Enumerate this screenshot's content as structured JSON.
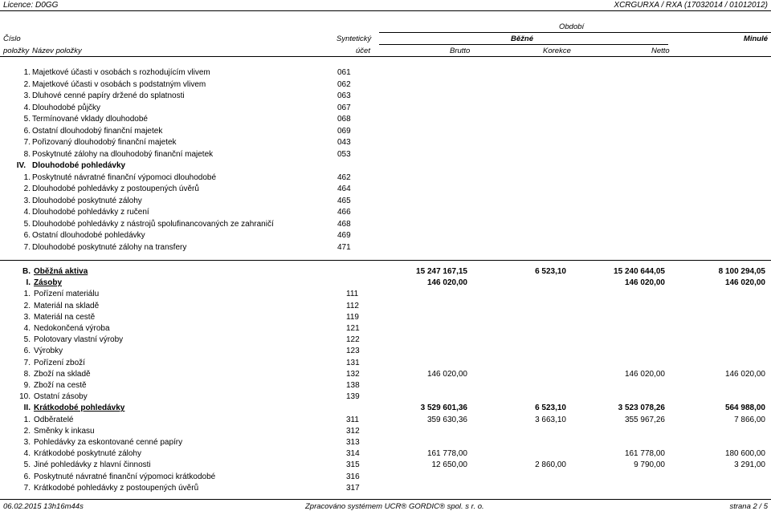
{
  "topbar": {
    "left": "Licence: D0GG",
    "right": "XCRGURXA / RXA  (17032014 / 01012012)"
  },
  "header": {
    "obdobi": "Období",
    "cislo": "Číslo",
    "syntheticky": "Syntetický",
    "bezne": "Běžné",
    "minule": "Minulé",
    "polozky": "položky",
    "nazev": "Název položky",
    "ucet": "účet",
    "brutto": "Brutto",
    "korekce": "Korekce",
    "netto": "Netto"
  },
  "rows1": [
    {
      "n": "1.",
      "t": "Majetkové účasti v osobách s rozhodujícím vlivem",
      "a": "061"
    },
    {
      "n": "2.",
      "t": "Majetkové účasti v osobách s podstatným vlivem",
      "a": "062"
    },
    {
      "n": "3.",
      "t": "Dluhové cenné papíry držené do splatnosti",
      "a": "063"
    },
    {
      "n": "4.",
      "t": "Dlouhodobé půjčky",
      "a": "067"
    },
    {
      "n": "5.",
      "t": "Termínované vklady dlouhodobé",
      "a": "068"
    },
    {
      "n": "6.",
      "t": "Ostatní dlouhodobý finanční majetek",
      "a": "069"
    },
    {
      "n": "7.",
      "t": "Pořizovaný dlouhodobý finanční majetek",
      "a": "043"
    },
    {
      "n": "8.",
      "t": "Poskytnuté zálohy na dlouhodobý finanční majetek",
      "a": "053"
    },
    {
      "n": "IV.",
      "t": "Dlouhodobé pohledávky",
      "a": "",
      "bold": true
    },
    {
      "n": "1.",
      "t": "Poskytnuté návratné finanční výpomoci dlouhodobé",
      "a": "462"
    },
    {
      "n": "2.",
      "t": "Dlouhodobé pohledávky z postoupených úvěrů",
      "a": "464"
    },
    {
      "n": "3.",
      "t": "Dlouhodobé poskytnuté zálohy",
      "a": "465"
    },
    {
      "n": "4.",
      "t": "Dlouhodobé pohledávky z ručení",
      "a": "466"
    },
    {
      "n": "5.",
      "t": "Dlouhodobé pohledávky z nástrojů spolufinancovaných ze zahraničí",
      "a": "468"
    },
    {
      "n": "6.",
      "t": "Ostatní dlouhodobé pohledávky",
      "a": "469"
    },
    {
      "n": "7.",
      "t": "Dlouhodobé poskytnuté zálohy na transfery",
      "a": "471"
    }
  ],
  "rows2": [
    {
      "n": "B.",
      "t": "Oběžná aktiva",
      "a": "",
      "brutto": "15 247 167,15",
      "korekce": "6 523,10",
      "netto": "15 240 644,05",
      "minule": "8 100 294,05",
      "bold": true
    },
    {
      "n": "I.",
      "t": "Zásoby",
      "a": "",
      "brutto": "146 020,00",
      "korekce": "",
      "netto": "146 020,00",
      "minule": "146 020,00",
      "bold": true
    },
    {
      "n": "1.",
      "t": "Pořízení materiálu",
      "a": "111",
      "brutto": "",
      "korekce": "",
      "netto": "",
      "minule": ""
    },
    {
      "n": "2.",
      "t": "Materiál na skladě",
      "a": "112",
      "brutto": "",
      "korekce": "",
      "netto": "",
      "minule": ""
    },
    {
      "n": "3.",
      "t": "Materiál na cestě",
      "a": "119",
      "brutto": "",
      "korekce": "",
      "netto": "",
      "minule": ""
    },
    {
      "n": "4.",
      "t": "Nedokončená výroba",
      "a": "121",
      "brutto": "",
      "korekce": "",
      "netto": "",
      "minule": ""
    },
    {
      "n": "5.",
      "t": "Polotovary vlastní výroby",
      "a": "122",
      "brutto": "",
      "korekce": "",
      "netto": "",
      "minule": ""
    },
    {
      "n": "6.",
      "t": "Výrobky",
      "a": "123",
      "brutto": "",
      "korekce": "",
      "netto": "",
      "minule": ""
    },
    {
      "n": "7.",
      "t": "Pořízení zboží",
      "a": "131",
      "brutto": "",
      "korekce": "",
      "netto": "",
      "minule": ""
    },
    {
      "n": "8.",
      "t": "Zboží na skladě",
      "a": "132",
      "brutto": "146 020,00",
      "korekce": "",
      "netto": "146 020,00",
      "minule": "146 020,00"
    },
    {
      "n": "9.",
      "t": "Zboží na cestě",
      "a": "138",
      "brutto": "",
      "korekce": "",
      "netto": "",
      "minule": ""
    },
    {
      "n": "10.",
      "t": "Ostatní zásoby",
      "a": "139",
      "brutto": "",
      "korekce": "",
      "netto": "",
      "minule": ""
    },
    {
      "n": "II.",
      "t": "Krátkodobé pohledávky",
      "a": "",
      "brutto": "3 529 601,36",
      "korekce": "6 523,10",
      "netto": "3 523 078,26",
      "minule": "564 988,00",
      "bold": true
    },
    {
      "n": "1.",
      "t": "Odběratelé",
      "a": "311",
      "brutto": "359 630,36",
      "korekce": "3 663,10",
      "netto": "355 967,26",
      "minule": "7 866,00"
    },
    {
      "n": "2.",
      "t": "Směnky k inkasu",
      "a": "312",
      "brutto": "",
      "korekce": "",
      "netto": "",
      "minule": ""
    },
    {
      "n": "3.",
      "t": "Pohledávky za eskontované cenné papíry",
      "a": "313",
      "brutto": "",
      "korekce": "",
      "netto": "",
      "minule": ""
    },
    {
      "n": "4.",
      "t": "Krátkodobé poskytnuté zálohy",
      "a": "314",
      "brutto": "161 778,00",
      "korekce": "",
      "netto": "161 778,00",
      "minule": "180 600,00"
    },
    {
      "n": "5.",
      "t": "Jiné pohledávky z hlavní činnosti",
      "a": "315",
      "brutto": "12 650,00",
      "korekce": "2 860,00",
      "netto": "9 790,00",
      "minule": "3 291,00"
    },
    {
      "n": "6.",
      "t": "Poskytnuté návratné finanční výpomoci krátkodobé",
      "a": "316",
      "brutto": "",
      "korekce": "",
      "netto": "",
      "minule": ""
    },
    {
      "n": "7.",
      "t": "Krátkodobé pohledávky z postoupených úvěrů",
      "a": "317",
      "brutto": "",
      "korekce": "",
      "netto": "",
      "minule": ""
    }
  ],
  "footer": {
    "left": "06.02.2015 13h16m44s",
    "center": "Zpracováno systémem UCR® GORDIC® spol. s r. o.",
    "right": "strana 2 / 5"
  }
}
